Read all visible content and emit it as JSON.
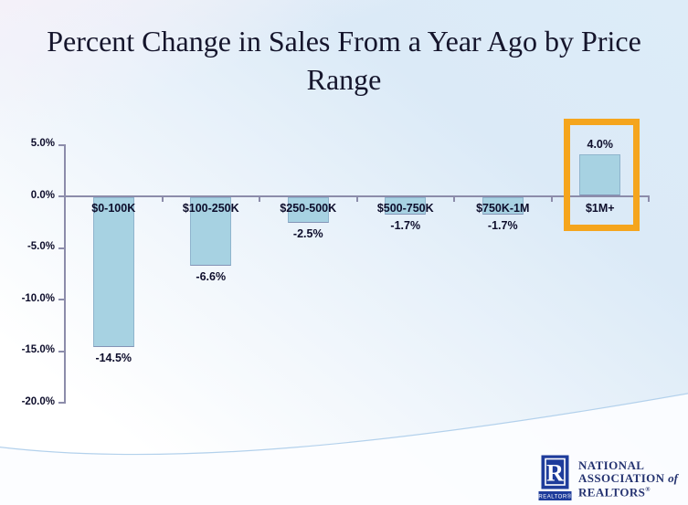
{
  "title_line1": "Percent Change in Sales From a Year Ago by Price",
  "title_line2": "Range",
  "chart_data": {
    "type": "bar",
    "title": "Percent Change in Sales From a Year Ago by Price Range",
    "xlabel": "",
    "ylabel": "",
    "categories": [
      "$0-100K",
      "$100-250K",
      "$250-500K",
      "$500-750K",
      "$750K-1M",
      "$1M+"
    ],
    "values": [
      -14.5,
      -6.6,
      -2.5,
      -1.7,
      -1.7,
      4.0
    ],
    "value_labels": [
      "-14.5%",
      "-6.6%",
      "-2.5%",
      "-1.7%",
      "-1.7%",
      "4.0%"
    ],
    "y_ticks": [
      {
        "label": "5.0%",
        "value": 5
      },
      {
        "label": "0.0%",
        "value": 0
      },
      {
        "label": "-5.0%",
        "value": -5
      },
      {
        "label": "-10.0%",
        "value": -10
      },
      {
        "label": "-15.0%",
        "value": -15
      },
      {
        "label": "-20.0%",
        "value": -20
      }
    ],
    "ylim": [
      -20,
      5
    ],
    "grid": false,
    "legend": false,
    "highlight": {
      "category": "$1M+",
      "index": 5,
      "color": "#f5a51d"
    }
  },
  "colors": {
    "bar_fill": "#a7d2e2",
    "bar_border": "#8fb4cd",
    "highlight_orange": "#f5a51d",
    "axis": "#8c8caa",
    "label_text": "#0d0d2b",
    "logo_blue": "#1e3c9b",
    "logo_text": "#263471"
  },
  "logo": {
    "letter": "R",
    "realtor_label": "REALTOR®",
    "line1": "NATIONAL",
    "line2": "ASSOCIATION ",
    "line2_of": "of",
    "line3": "REALTORS",
    "reg": "®"
  }
}
